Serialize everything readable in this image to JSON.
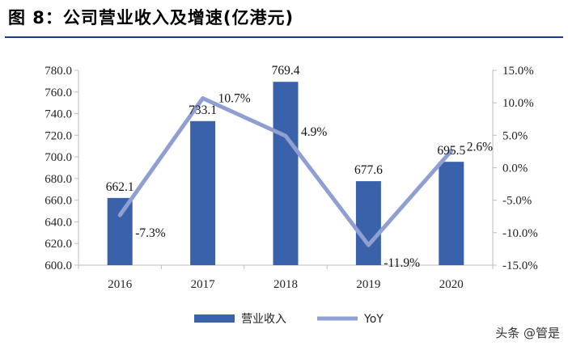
{
  "title": "图 8：公司营业收入及增速(亿港元)",
  "watermark": "头条 @管是",
  "colors": {
    "bar": "#3a62ab",
    "line": "#8f9fd2",
    "axis": "#bdbdbd",
    "title_rule": "#1f3a8a"
  },
  "chart_data": {
    "type": "bar",
    "title": "图 8：公司营业收入及增速(亿港元)",
    "categories": [
      "2016",
      "2017",
      "2018",
      "2019",
      "2020"
    ],
    "series": [
      {
        "name": "营业收入",
        "type": "bar",
        "axis": "left",
        "values": [
          662.1,
          733.1,
          769.4,
          677.6,
          695.5
        ],
        "labels": [
          "662.1",
          "733.1",
          "769.4",
          "677.6",
          "695.5"
        ]
      },
      {
        "name": "YoY",
        "type": "line",
        "axis": "right",
        "values": [
          -7.3,
          10.7,
          4.9,
          -11.9,
          2.6
        ],
        "labels": [
          "-7.3%",
          "10.7%",
          "4.9%",
          "-11.9%",
          "2.6%"
        ]
      }
    ],
    "y_left": {
      "min": 600,
      "max": 780,
      "step": 20,
      "ticks": [
        "600.0",
        "620.0",
        "640.0",
        "660.0",
        "680.0",
        "700.0",
        "720.0",
        "740.0",
        "760.0",
        "780.0"
      ]
    },
    "y_right": {
      "min": -15,
      "max": 15,
      "step": 5,
      "ticks": [
        "-15.0%",
        "-10.0%",
        "-5.0%",
        "0.0%",
        "5.0%",
        "10.0%",
        "15.0%"
      ]
    },
    "legend": {
      "placement": "bottom",
      "items": [
        "营业收入",
        "YoY"
      ]
    },
    "grid": false
  }
}
